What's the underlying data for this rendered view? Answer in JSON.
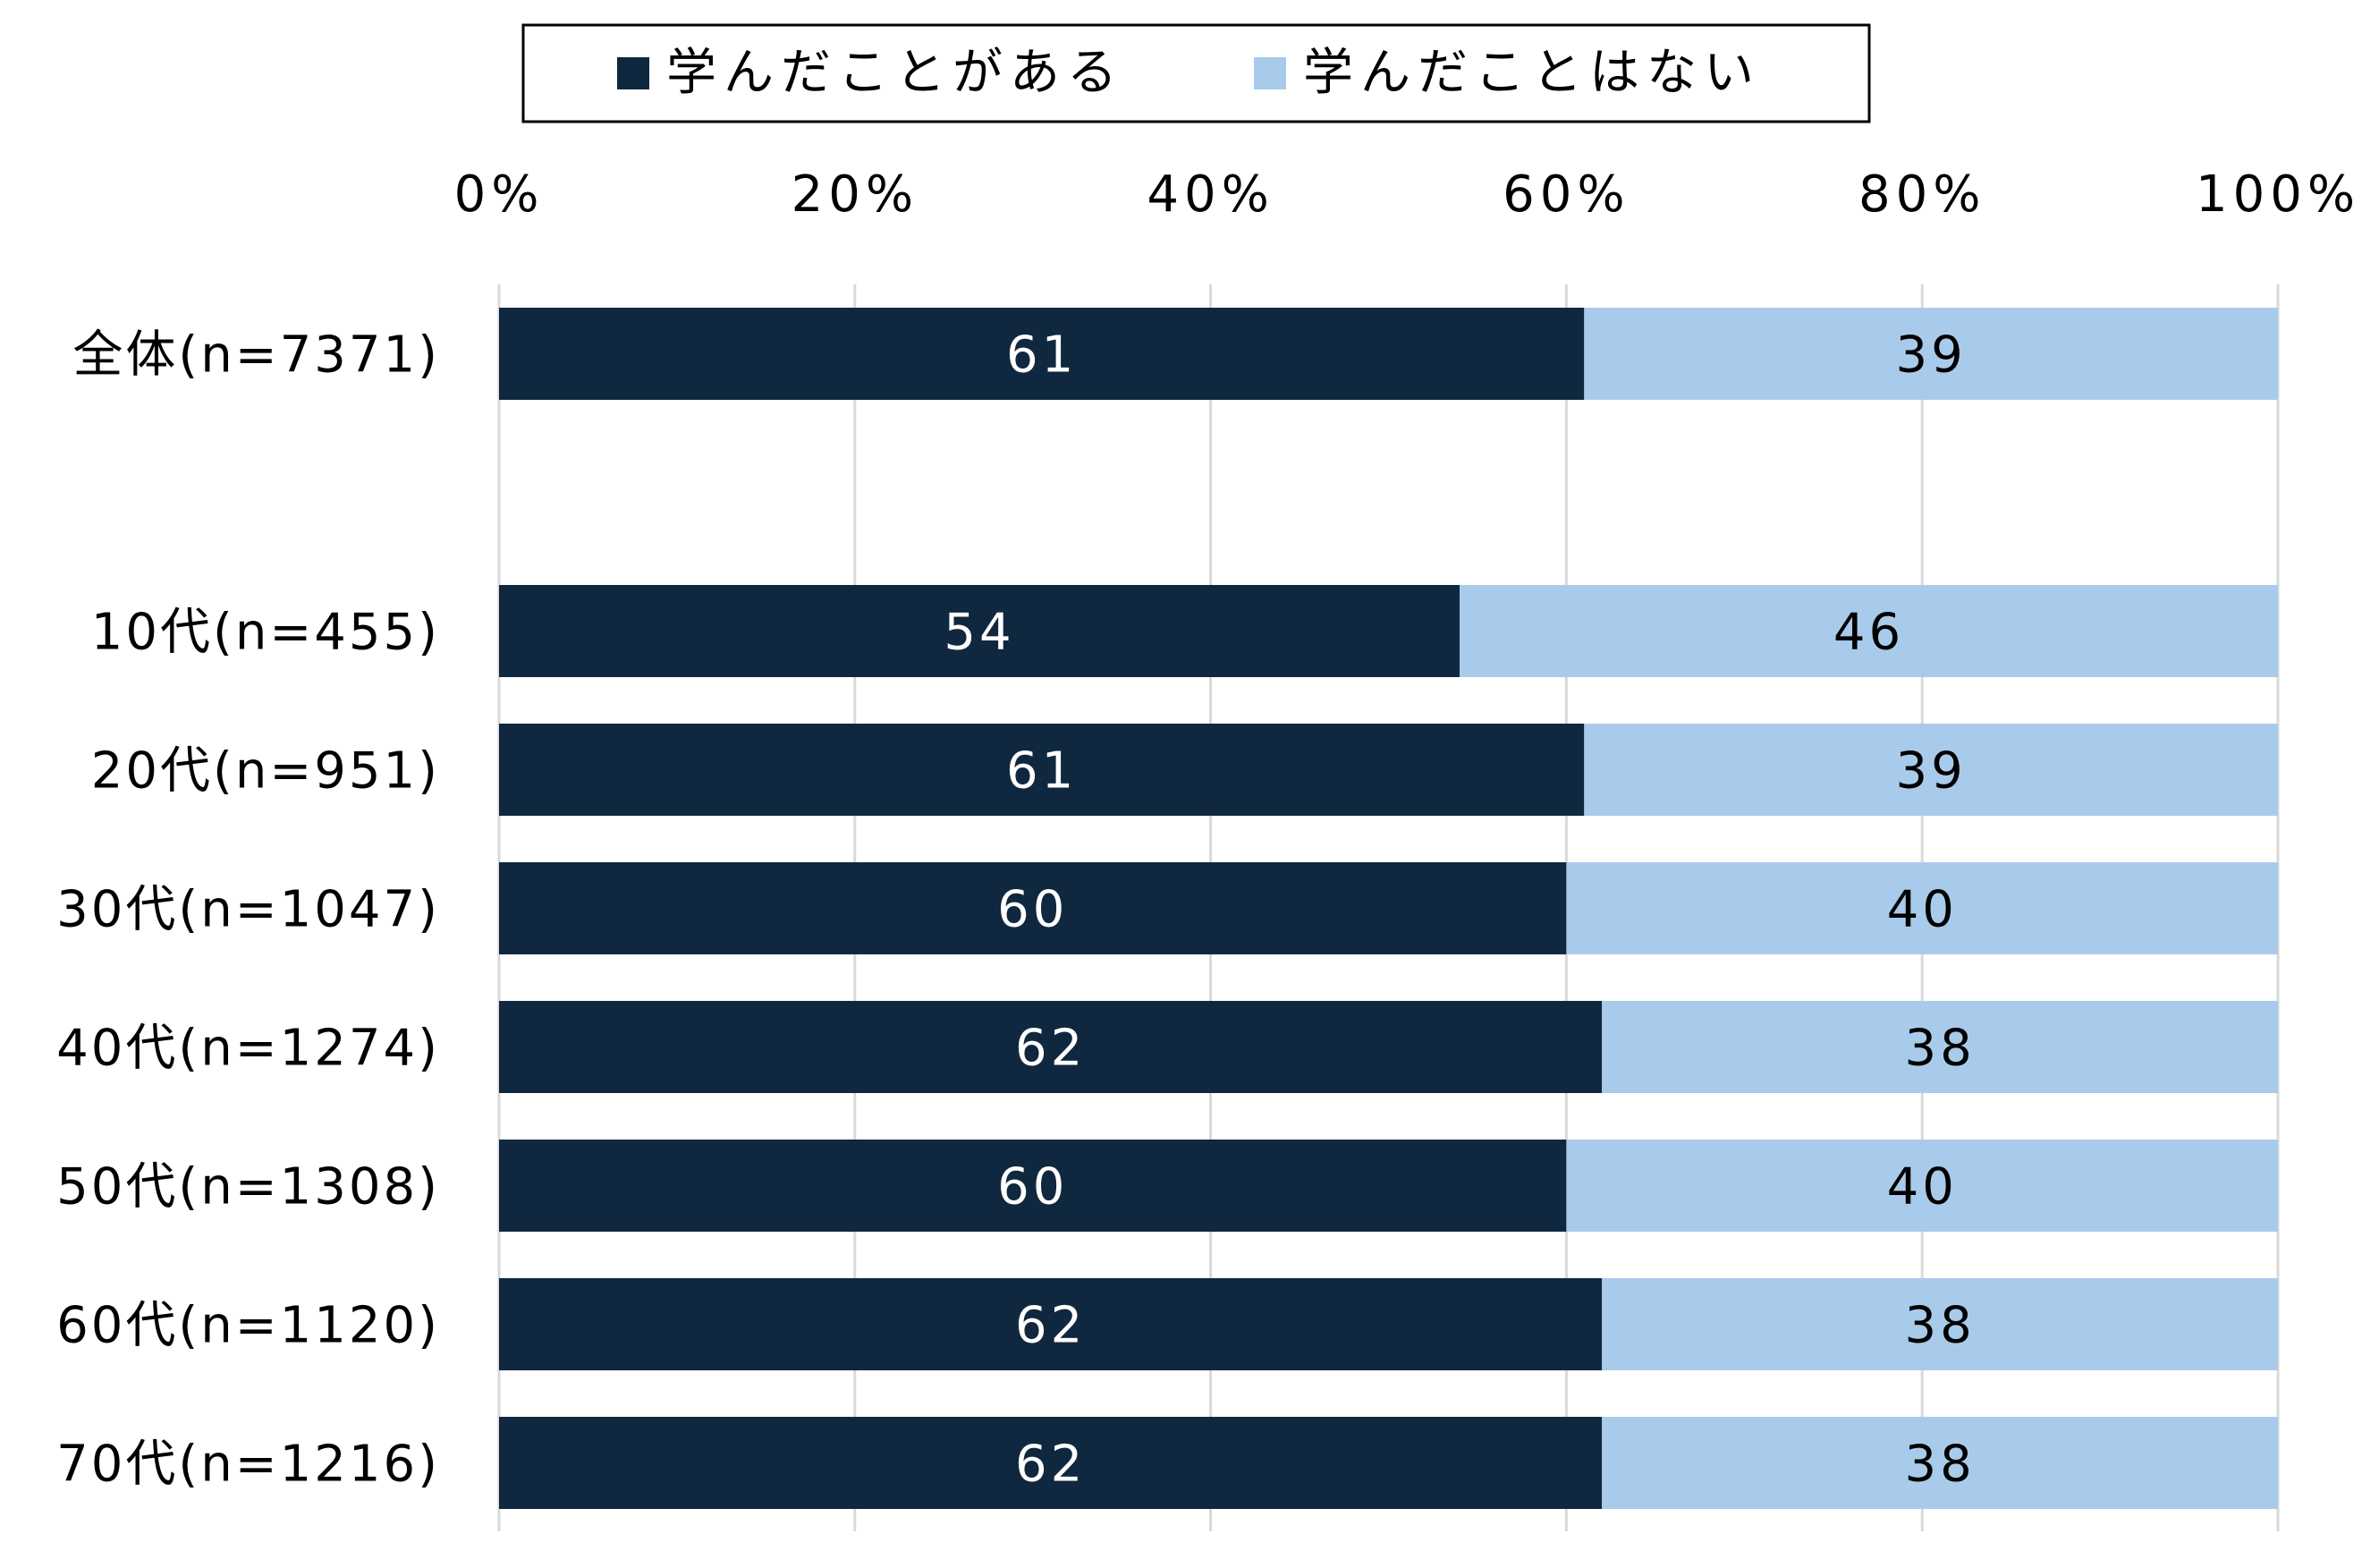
{
  "chart_data": {
    "type": "bar",
    "orientation": "horizontal",
    "stacked": true,
    "percent_axis": true,
    "categories": [
      "全体(n=7371)",
      "",
      "10代(n=455)",
      "20代(n=951)",
      "30代(n=1047)",
      "40代(n=1274)",
      "50代(n=1308)",
      "60代(n=1120)",
      "70代(n=1216)"
    ],
    "series": [
      {
        "name": "学んだことがある",
        "values": [
          61,
          null,
          54,
          61,
          60,
          62,
          60,
          62,
          62
        ],
        "color": "#10283f",
        "label_color": "#ffffff"
      },
      {
        "name": "学んだことはない",
        "values": [
          39,
          null,
          46,
          39,
          40,
          38,
          40,
          38,
          38
        ],
        "color": "#a8cbeb",
        "label_color": "#000000"
      }
    ],
    "x_ticks": [
      "0%",
      "20%",
      "40%",
      "60%",
      "80%",
      "100%"
    ],
    "xlim": [
      0,
      100
    ],
    "grid": "vertical",
    "legend_position": "top",
    "title": "",
    "xlabel": "",
    "ylabel": ""
  }
}
